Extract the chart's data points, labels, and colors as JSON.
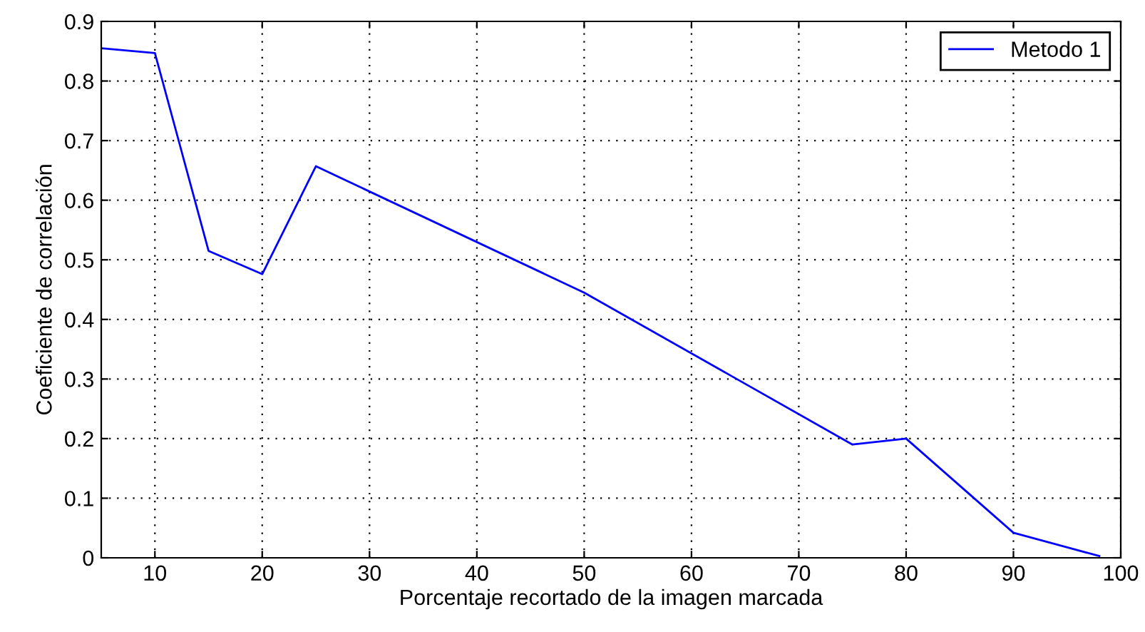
{
  "chart_data": {
    "type": "line",
    "xlabel": "Porcentaje recortado de la imagen marcada",
    "ylabel": "Coeficiente de correlación",
    "x": [
      5,
      10,
      15,
      20,
      25,
      50,
      75,
      80,
      90,
      98
    ],
    "series": [
      {
        "name": "Metodo 1",
        "color": "#0000ff",
        "values": [
          0.855,
          0.847,
          0.515,
          0.476,
          0.657,
          0.445,
          0.19,
          0.2,
          0.042,
          0.003
        ]
      }
    ],
    "xlim": [
      5,
      100
    ],
    "xticks": [
      10,
      20,
      30,
      40,
      50,
      60,
      70,
      80,
      90,
      100
    ],
    "ylim": [
      0,
      0.9
    ],
    "yticks": [
      0,
      0.1,
      0.2,
      0.3,
      0.4,
      0.5,
      0.6,
      0.7,
      0.8,
      0.9
    ],
    "grid": true,
    "legend": "top right",
    "marker": "none",
    "line_style": "solid"
  }
}
